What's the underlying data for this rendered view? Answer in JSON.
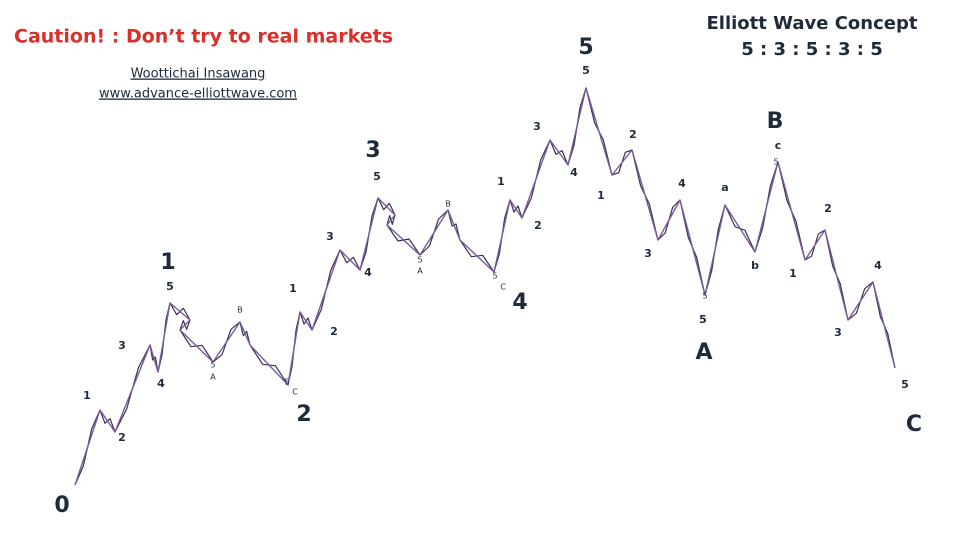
{
  "header": {
    "caution": "Caution! : Don’t try to real markets",
    "author": "Woottichai Insawang",
    "website": "www.advance-elliottwave.com",
    "concept_title": "Elliott Wave Concept",
    "concept_ratio": "5 : 3 : 5 : 3 : 5"
  },
  "wave_labels": [
    "0",
    "1",
    "2",
    "3",
    "4",
    "5",
    "A",
    "B",
    "C",
    "1",
    "2",
    "3",
    "4",
    "5",
    "A",
    "B",
    "C",
    "1",
    "2",
    "3",
    "4",
    "5",
    "A",
    "B",
    "C",
    "1",
    "2",
    "3",
    "4",
    "5",
    "1",
    "2",
    "3",
    "4",
    "5",
    "a",
    "b",
    "c",
    "1",
    "2",
    "3",
    "4",
    "5",
    "5",
    "5",
    "5",
    "5",
    "5",
    "5"
  ]
}
